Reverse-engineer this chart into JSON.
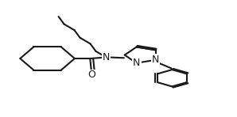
{
  "bg_color": "#ffffff",
  "line_color": "#1a1a1a",
  "line_width": 1.5,
  "font_size": 9,
  "atom_labels": {
    "N": "N",
    "O": "O",
    "N2": "N"
  }
}
